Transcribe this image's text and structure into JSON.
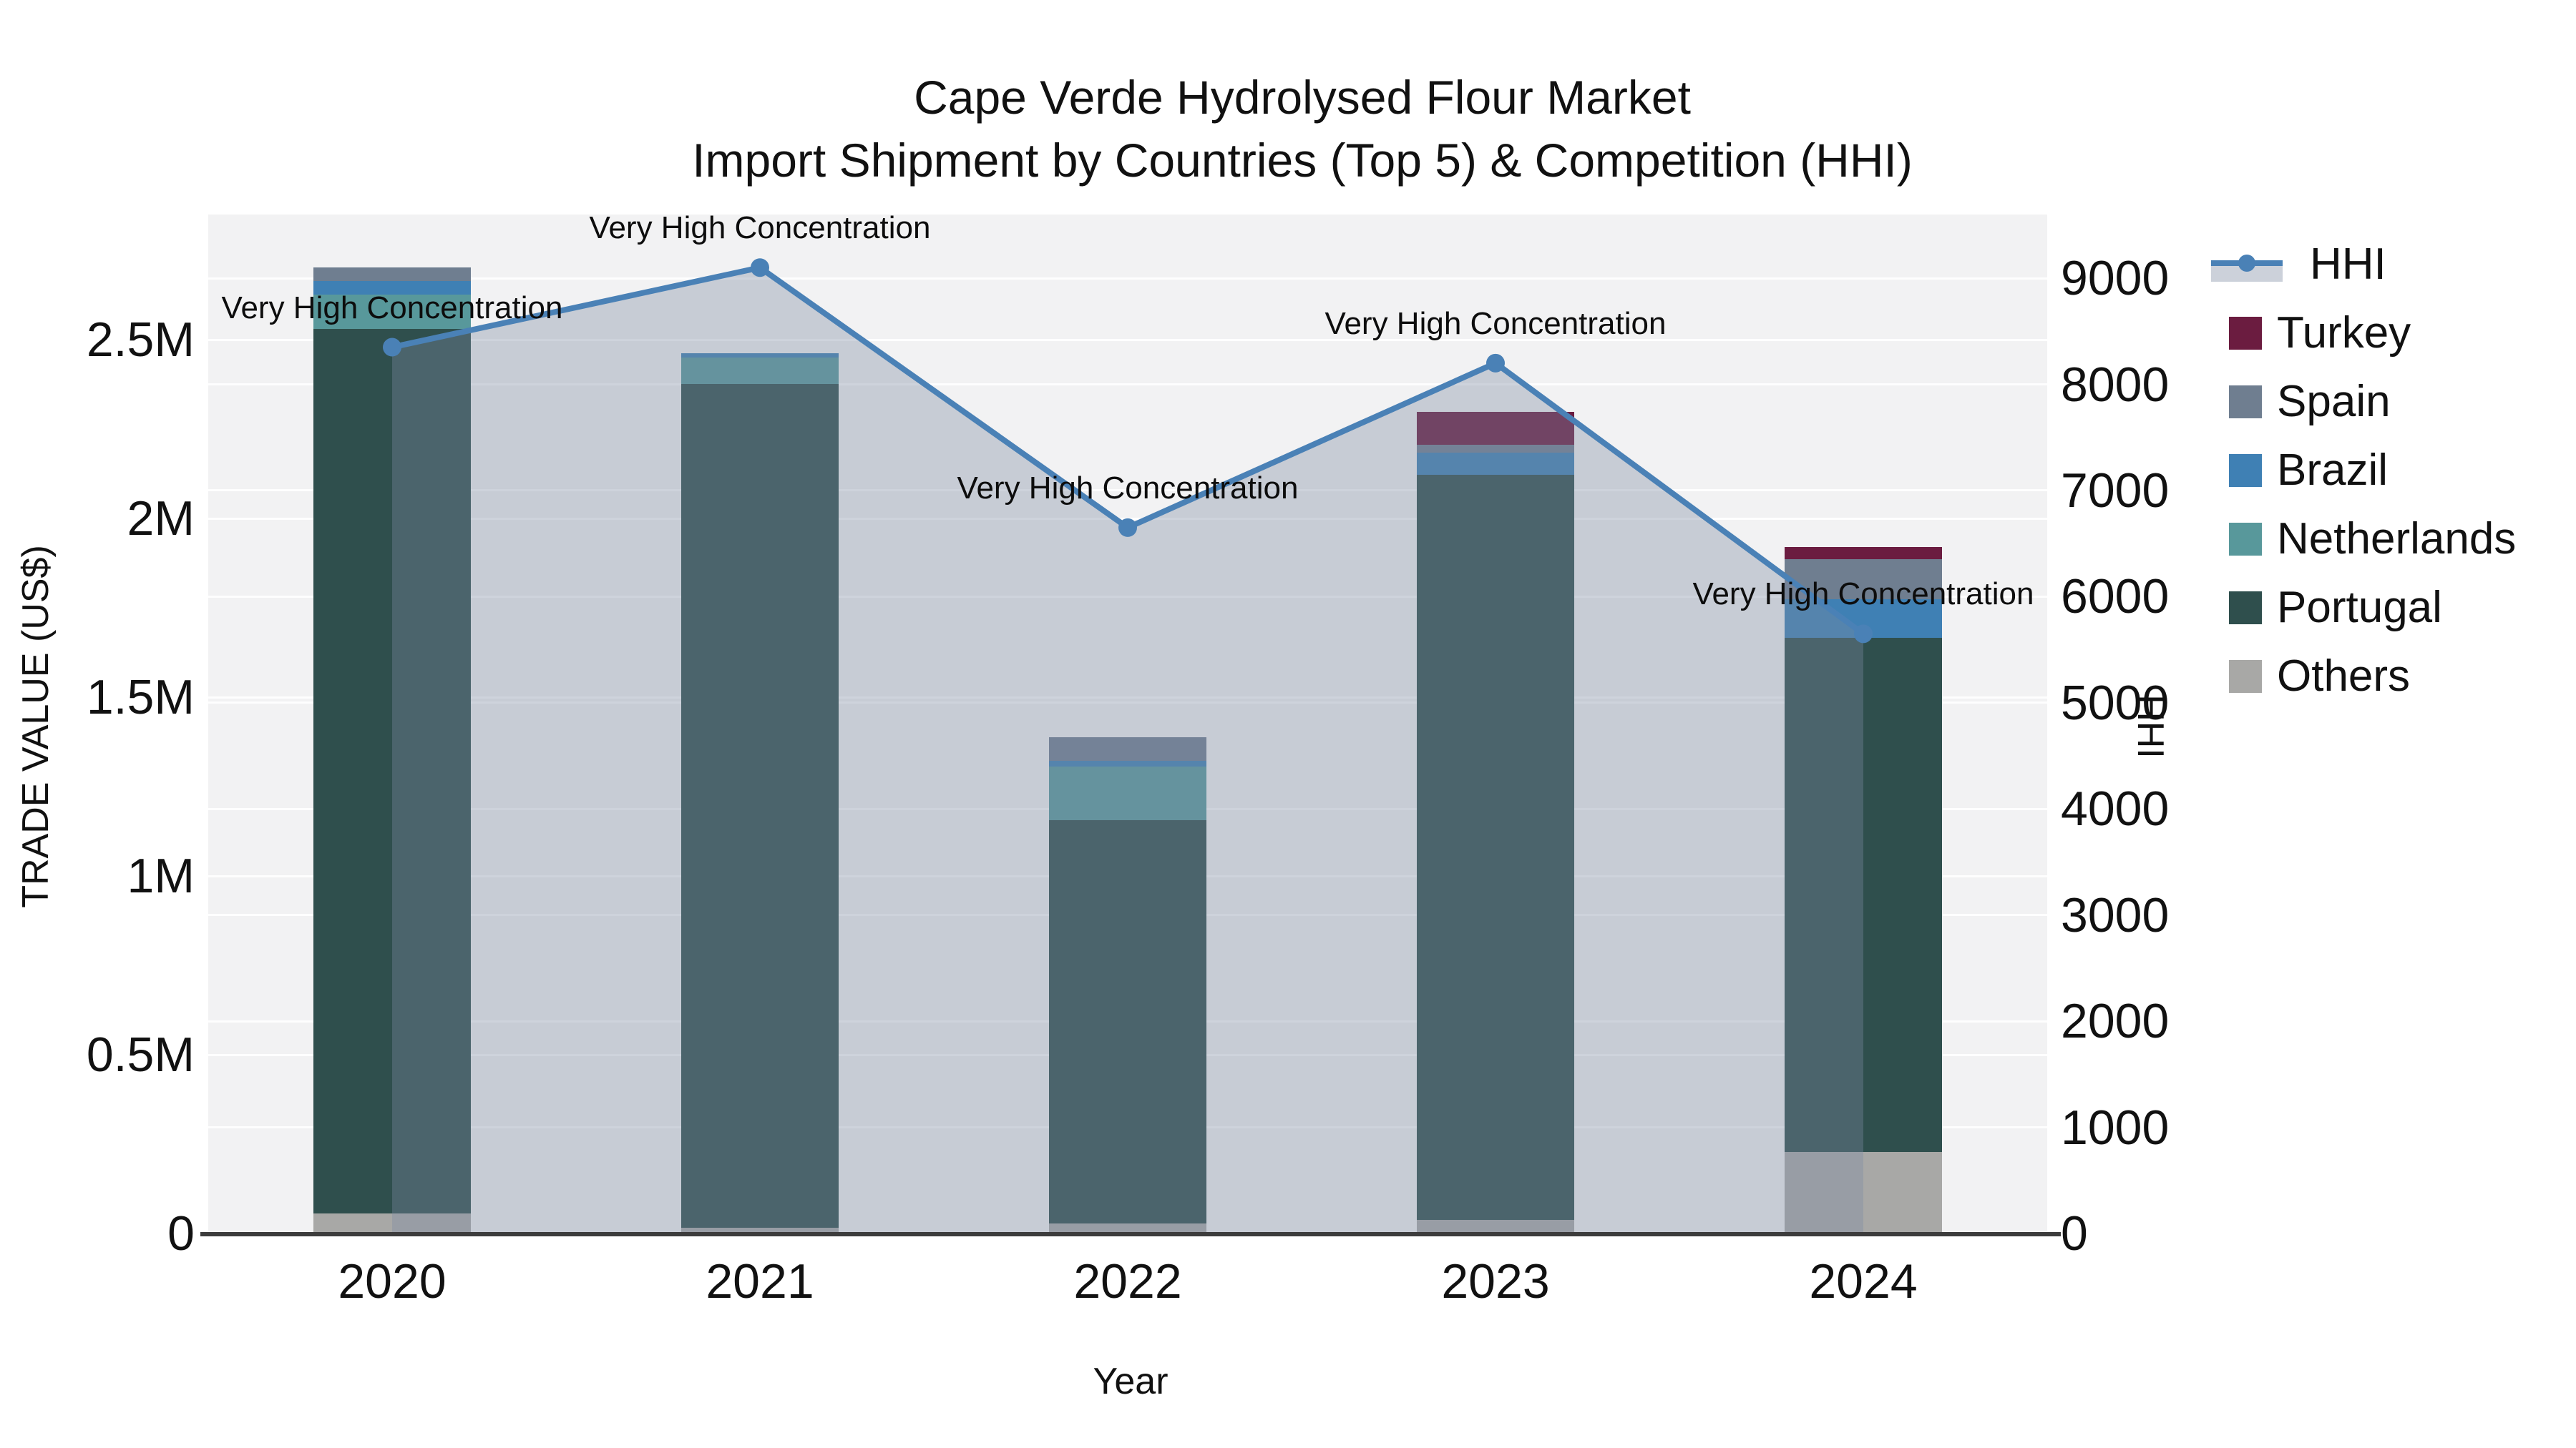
{
  "header": {
    "title_line1": "Cape Verde Hydrolysed Flour Market",
    "title_line2": "Import Shipment by Countries (Top 5) & Competition (HHI)"
  },
  "axes": {
    "x_title": "Year",
    "y1_title": "TRADE VALUE (US$)",
    "y2_title": "HHI",
    "y1_ticks": [
      {
        "value": 0,
        "label": "0"
      },
      {
        "value": 500000,
        "label": "0.5M"
      },
      {
        "value": 1000000,
        "label": "1M"
      },
      {
        "value": 1500000,
        "label": "1.5M"
      },
      {
        "value": 2000000,
        "label": "2M"
      },
      {
        "value": 2500000,
        "label": "2.5M"
      }
    ],
    "y2_ticks": [
      {
        "value": 0,
        "label": "0"
      },
      {
        "value": 1000,
        "label": "1000"
      },
      {
        "value": 2000,
        "label": "2000"
      },
      {
        "value": 3000,
        "label": "3000"
      },
      {
        "value": 4000,
        "label": "4000"
      },
      {
        "value": 5000,
        "label": "5000"
      },
      {
        "value": 6000,
        "label": "6000"
      },
      {
        "value": 7000,
        "label": "7000"
      },
      {
        "value": 8000,
        "label": "8000"
      },
      {
        "value": 9000,
        "label": "9000"
      }
    ]
  },
  "chart_data": {
    "type": "bar",
    "stacked": true,
    "title": "Cape Verde Hydrolysed Flour Market - Import Shipment by Countries (Top 5) & Competition (HHI)",
    "xlabel": "Year",
    "ylabel": "TRADE VALUE (US$)",
    "y2label": "HHI",
    "categories": [
      "2020",
      "2021",
      "2022",
      "2023",
      "2024"
    ],
    "series": [
      {
        "name": "Others",
        "color": "#a8a8a6",
        "values": [
          56000,
          16000,
          28000,
          38000,
          229000
        ]
      },
      {
        "name": "Portugal",
        "color": "#2f4f4d",
        "values": [
          2474000,
          2361000,
          1129000,
          2084000,
          1438000
        ]
      },
      {
        "name": "Netherlands",
        "color": "#58989b",
        "values": [
          96000,
          74000,
          149000,
          0,
          0
        ]
      },
      {
        "name": "Brazil",
        "color": "#3f80b4",
        "values": [
          38000,
          12000,
          16000,
          62000,
          108000
        ]
      },
      {
        "name": "Spain",
        "color": "#6f7e90",
        "values": [
          38000,
          0,
          66000,
          22000,
          112000
        ]
      },
      {
        "name": "Turkey",
        "color": "#6b1c40",
        "values": [
          0,
          0,
          0,
          92000,
          34000
        ]
      }
    ],
    "line_series": {
      "name": "HHI",
      "axis": "y2",
      "color": "#4a81b6",
      "area_fill_color": "rgba(126,139,163,0.37)",
      "values": [
        8350,
        9100,
        6650,
        8200,
        5650
      ]
    },
    "annotations": [
      "Very High Concentration",
      "Very High Concentration",
      "Very High Concentration",
      "Very High Concentration",
      "Very High Concentration"
    ],
    "y1_range": [
      0,
      2850000
    ],
    "y2_range": [
      0,
      9600
    ],
    "grid": true,
    "plot_bg": "#f2f2f3",
    "grid_color": "rgba(255,255,255,0.9)",
    "legend_position": "right",
    "legend_order": [
      "HHI",
      "Turkey",
      "Spain",
      "Brazil",
      "Netherlands",
      "Portugal",
      "Others"
    ]
  }
}
